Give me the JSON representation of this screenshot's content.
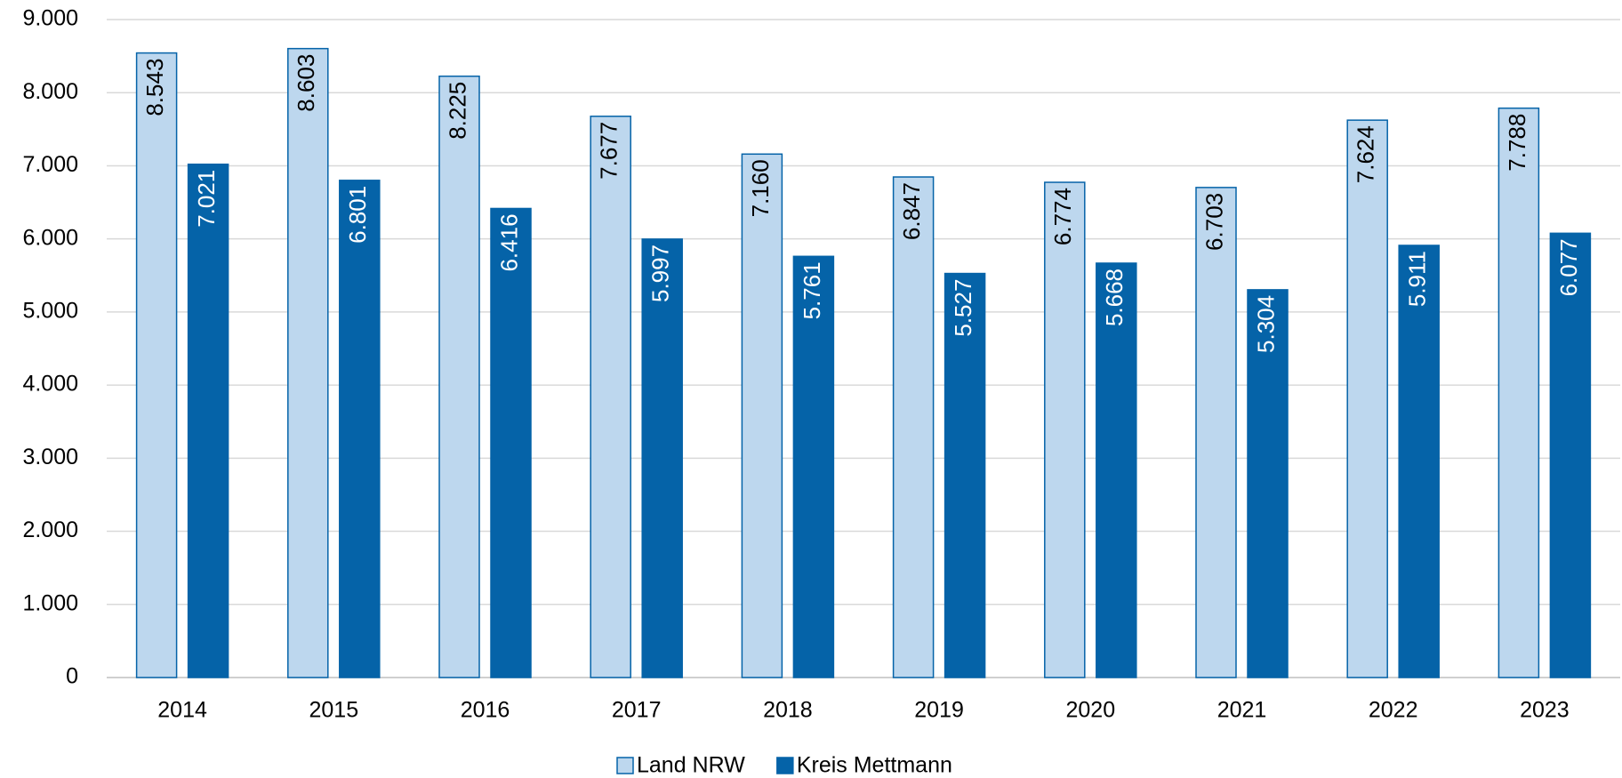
{
  "chart_data": {
    "type": "bar",
    "categories": [
      "2014",
      "2015",
      "2016",
      "2017",
      "2018",
      "2019",
      "2020",
      "2021",
      "2022",
      "2023"
    ],
    "series": [
      {
        "name": "Land NRW",
        "color": "#bdd7ee",
        "values": [
          8543,
          8603,
          8225,
          7677,
          7160,
          6847,
          6774,
          6703,
          7624,
          7788
        ],
        "value_labels": [
          "8.543",
          "8.603",
          "8.225",
          "7.677",
          "7.160",
          "6.847",
          "6.774",
          "6.703",
          "7.624",
          "7.788"
        ]
      },
      {
        "name": "Kreis Mettmann",
        "color": "#0563a8",
        "values": [
          7021,
          6801,
          6416,
          5997,
          5761,
          5527,
          5668,
          5304,
          5911,
          6077
        ],
        "value_labels": [
          "7.021",
          "6.801",
          "6.416",
          "5.997",
          "5.761",
          "5.527",
          "5.668",
          "5.304",
          "5.911",
          "6.077"
        ]
      }
    ],
    "ylim": [
      0,
      9000
    ],
    "yticks": [
      0,
      {
        "value": 1000,
        "label": "1.000"
      },
      {
        "value": 2000,
        "label": "2.000"
      },
      {
        "value": 3000,
        "label": "3.000"
      },
      {
        "value": 4000,
        "label": "4.000"
      },
      {
        "value": 5000,
        "label": "5.000"
      },
      {
        "value": 6000,
        "label": "6.000"
      },
      {
        "value": 7000,
        "label": "7.000"
      },
      {
        "value": 8000,
        "label": "8.000"
      },
      {
        "value": 9000,
        "label": "9.000"
      }
    ],
    "grid": true,
    "legend": "bottom"
  }
}
